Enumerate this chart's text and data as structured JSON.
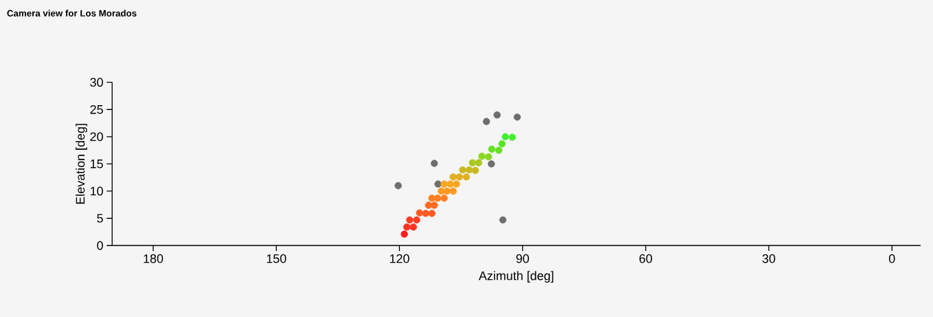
{
  "chart_data": {
    "type": "scatter",
    "title": "Camera view for Los Morados",
    "xlabel": "Azimuth [deg]",
    "ylabel": "Elevation [deg]",
    "xlim": [
      190,
      -7
    ],
    "ylim": [
      0,
      30
    ],
    "xticks": [
      180,
      150,
      120,
      90,
      60,
      30,
      0
    ],
    "yticks": [
      0,
      5,
      10,
      15,
      20,
      25,
      30
    ],
    "marker": "circle",
    "grid": false,
    "series": [
      {
        "color": "#6e6e6e",
        "x": [
          96.2,
          98.8,
          91.3,
          111.5,
          97.6,
          120.3,
          110.6,
          94.8
        ],
        "values": [
          24.0,
          22.8,
          23.6,
          15.1,
          15.0,
          11.0,
          11.3,
          4.7
        ]
      },
      {
        "x": [
          118.8,
          118.2,
          116.6,
          117.5,
          115.8,
          115.1,
          113.6,
          112.1,
          112.9,
          111.5,
          112.1,
          110.7,
          109.1,
          109.8,
          108.4,
          106.9,
          109.1,
          107.6,
          106.1,
          106.9,
          105.4,
          103.7,
          104.6,
          103.0,
          101.5,
          102.2,
          100.7,
          99.9,
          98.3,
          97.5,
          95.8,
          95.0,
          94.2,
          92.5
        ],
        "values": [
          2.1,
          3.4,
          3.4,
          4.7,
          4.7,
          6.0,
          5.9,
          5.9,
          7.4,
          7.4,
          8.7,
          8.7,
          8.7,
          10.0,
          10.0,
          10.0,
          11.3,
          11.3,
          11.3,
          12.6,
          12.6,
          12.6,
          13.9,
          13.9,
          13.8,
          15.2,
          15.2,
          16.4,
          16.3,
          17.7,
          17.5,
          18.7,
          20.0,
          19.9
        ],
        "colors": [
          "#ff2020",
          "#ff3322",
          "#ff3322",
          "#ff3d22",
          "#ff3d22",
          "#ff5a22",
          "#ff5a22",
          "#ff5a22",
          "#ff6a22",
          "#ff6a22",
          "#ff8022",
          "#ff8022",
          "#ff8022",
          "#ff9922",
          "#ff9922",
          "#ff9922",
          "#f9a822",
          "#f9a822",
          "#f9a822",
          "#e0b020",
          "#e0b020",
          "#e0b020",
          "#c8b820",
          "#c8b820",
          "#c8b820",
          "#aac820",
          "#aac820",
          "#88d822",
          "#88d822",
          "#66e022",
          "#66e022",
          "#55e622",
          "#44ee33",
          "#44ee33"
        ]
      }
    ]
  }
}
